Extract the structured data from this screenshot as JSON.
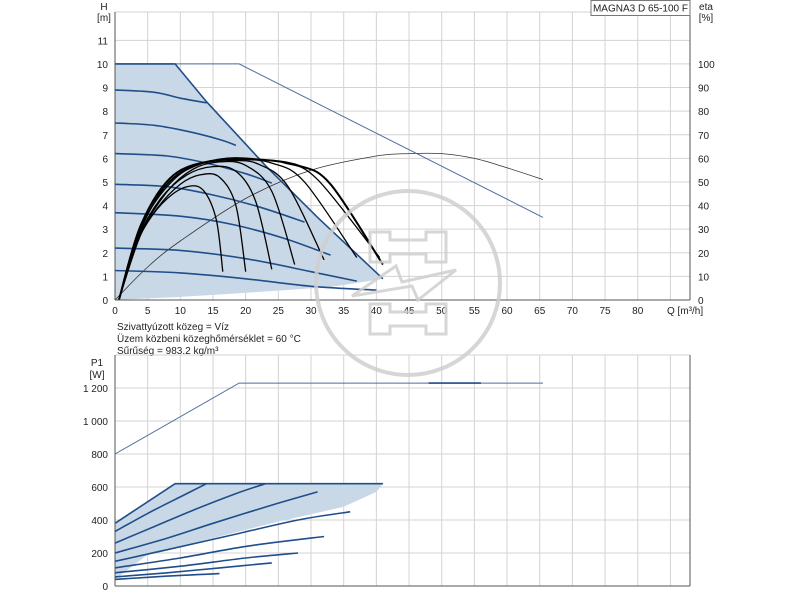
{
  "product_label": "MAGNA3 D 65-100 F",
  "medium_info": [
    "Szivattyúzott közeg = Víz",
    "Üzem közbeni közeghőmérséklet = 60 °C",
    "Sűrűség = 983.2 kg/m³"
  ],
  "colors": {
    "curve": "#1f4e8a",
    "curve_bold": "#000000",
    "line_thin": "#4f6f9f",
    "fill": "#c9d8e6",
    "grid": "#d3d3d3",
    "axis": "#555555",
    "watermark": "#cfcfcf"
  },
  "chart_data": [
    {
      "type": "line",
      "panel": "head",
      "ylabel_top": "H",
      "yunit": "[m]",
      "y2label_top": "eta",
      "y2unit": "[%]",
      "xlabel": "Q [m³/h]",
      "xlim": [
        0,
        88
      ],
      "ylim": [
        0,
        12.2
      ],
      "y2lim": [
        0,
        122
      ],
      "xticks": [
        0,
        5,
        10,
        15,
        20,
        25,
        30,
        35,
        40,
        45,
        50,
        55,
        60,
        65,
        70,
        75,
        80
      ],
      "yticks": [
        0,
        1,
        2,
        3,
        4,
        5,
        6,
        7,
        8,
        9,
        10,
        11
      ],
      "y2ticks": [
        0,
        10,
        20,
        30,
        40,
        50,
        60,
        70,
        80,
        90,
        100
      ],
      "grid": true,
      "operating_area": [
        [
          0,
          10
        ],
        [
          9.2,
          10
        ],
        [
          14,
          8.4
        ],
        [
          23,
          5.7
        ],
        [
          31,
          3.5
        ],
        [
          41,
          0.9
        ],
        [
          33,
          0.55
        ],
        [
          25,
          0.4
        ],
        [
          17,
          0.25
        ],
        [
          9,
          0.12
        ],
        [
          0,
          0
        ]
      ],
      "head_curves": [
        [
          [
            0,
            10
          ],
          [
            9.2,
            10
          ],
          [
            14,
            8.4
          ],
          [
            23,
            5.7
          ],
          [
            31,
            3.5
          ],
          [
            41,
            0.9
          ]
        ],
        [
          [
            0,
            8.9
          ],
          [
            6,
            8.8
          ],
          [
            10,
            8.55
          ],
          [
            14,
            8.35
          ]
        ],
        [
          [
            0,
            7.5
          ],
          [
            6,
            7.4
          ],
          [
            11,
            7.15
          ],
          [
            16,
            6.8
          ],
          [
            18.5,
            6.55
          ]
        ],
        [
          [
            0,
            6.2
          ],
          [
            8,
            6.1
          ],
          [
            14,
            5.8
          ],
          [
            20,
            5.35
          ],
          [
            24,
            4.95
          ]
        ],
        [
          [
            0,
            4.9
          ],
          [
            8,
            4.8
          ],
          [
            15,
            4.45
          ],
          [
            22,
            3.95
          ],
          [
            29,
            3.3
          ]
        ],
        [
          [
            0,
            3.7
          ],
          [
            10,
            3.55
          ],
          [
            18,
            3.2
          ],
          [
            26,
            2.6
          ],
          [
            33,
            1.9
          ]
        ],
        [
          [
            0,
            2.2
          ],
          [
            10,
            2.1
          ],
          [
            20,
            1.75
          ],
          [
            30,
            1.2
          ],
          [
            37,
            0.8
          ]
        ],
        [
          [
            0,
            1.25
          ],
          [
            10,
            1.15
          ],
          [
            20,
            0.9
          ],
          [
            30,
            0.58
          ],
          [
            40,
            0.42
          ]
        ]
      ],
      "efficiency_curves_bold": [
        [
          [
            0.6,
            0
          ],
          [
            2.5,
            1.9
          ],
          [
            5,
            3.3
          ],
          [
            8,
            4.3
          ],
          [
            11,
            4.8
          ],
          [
            13.5,
            4.65
          ],
          [
            15.5,
            3.4
          ],
          [
            16.5,
            1.2
          ]
        ],
        [
          [
            0.6,
            0
          ],
          [
            3,
            2.3
          ],
          [
            6.5,
            3.9
          ],
          [
            10,
            4.9
          ],
          [
            13,
            5.3
          ],
          [
            16,
            5.2
          ],
          [
            18.5,
            4
          ],
          [
            20,
            1.2
          ]
        ],
        [
          [
            0.6,
            0
          ],
          [
            3.5,
            2.6
          ],
          [
            7,
            4.3
          ],
          [
            11,
            5.3
          ],
          [
            15,
            5.65
          ],
          [
            18.5,
            5.45
          ],
          [
            21.5,
            4.2
          ],
          [
            24,
            1.3
          ]
        ],
        [
          [
            0.6,
            0
          ],
          [
            4,
            2.8
          ],
          [
            8,
            4.6
          ],
          [
            12,
            5.55
          ],
          [
            16,
            5.85
          ],
          [
            20,
            5.7
          ],
          [
            24,
            4.6
          ],
          [
            27.5,
            1.5
          ]
        ],
        [
          [
            0.6,
            0
          ],
          [
            4,
            3
          ],
          [
            8,
            4.9
          ],
          [
            13,
            5.75
          ],
          [
            18,
            5.9
          ],
          [
            22,
            5.75
          ],
          [
            26.5,
            4.8
          ],
          [
            32,
            1.7
          ]
        ],
        [
          [
            0.6,
            0
          ],
          [
            4,
            3.1
          ],
          [
            9,
            5.1
          ],
          [
            14,
            5.85
          ],
          [
            19,
            5.95
          ],
          [
            24,
            5.8
          ],
          [
            29,
            5
          ],
          [
            37,
            1.8
          ]
        ],
        [
          [
            0.6,
            0
          ],
          [
            4,
            3.2
          ],
          [
            9,
            5.2
          ],
          [
            15,
            5.9
          ],
          [
            20,
            5.95
          ],
          [
            26,
            5.8
          ],
          [
            31,
            5.1
          ],
          [
            40.5,
            1.8
          ]
        ],
        [
          [
            0.6,
            0
          ],
          [
            4,
            3.2
          ],
          [
            9,
            5.3
          ],
          [
            16,
            5.95
          ],
          [
            22,
            5.95
          ],
          [
            28,
            5.7
          ],
          [
            33,
            4.9
          ],
          [
            41,
            1.5
          ]
        ]
      ],
      "efficiency_thin": [
        [
          0,
          0
        ],
        [
          5,
          14
        ],
        [
          10,
          25
        ],
        [
          20,
          43
        ],
        [
          30,
          55
        ],
        [
          40,
          61
        ],
        [
          45,
          62
        ],
        [
          50,
          62
        ],
        [
          55,
          60
        ],
        [
          60,
          56
        ],
        [
          65.5,
          51
        ]
      ],
      "power_limit_line": [
        [
          0,
          100
        ],
        [
          19,
          100
        ],
        [
          65.5,
          35
        ]
      ]
    },
    {
      "type": "line",
      "panel": "power",
      "ylabel_top": "P1",
      "yunit": "[W]",
      "xlim": [
        0,
        88
      ],
      "ylim": [
        0,
        1400
      ],
      "yticks": [
        0,
        200,
        400,
        600,
        800,
        1000,
        1200
      ],
      "ytick_labels": [
        "0",
        "200",
        "400",
        "600",
        "800",
        "1 000",
        "1 200"
      ],
      "grid": true,
      "operating_area": [
        [
          0,
          380
        ],
        [
          9.2,
          620
        ],
        [
          41,
          620
        ],
        [
          40,
          570
        ],
        [
          35,
          480
        ],
        [
          25,
          390
        ],
        [
          15,
          290
        ],
        [
          5,
          190
        ],
        [
          0,
          40
        ]
      ],
      "power_curves": [
        [
          [
            0,
            380
          ],
          [
            9.2,
            620
          ],
          [
            41,
            620
          ]
        ],
        [
          [
            0,
            330
          ],
          [
            5,
            440
          ],
          [
            10,
            540
          ],
          [
            14,
            620
          ]
        ],
        [
          [
            0,
            260
          ],
          [
            6,
            360
          ],
          [
            12,
            460
          ],
          [
            18.5,
            560
          ],
          [
            23,
            620
          ]
        ],
        [
          [
            0,
            200
          ],
          [
            8,
            290
          ],
          [
            15,
            380
          ],
          [
            24,
            490
          ],
          [
            31,
            570
          ]
        ],
        [
          [
            0,
            150
          ],
          [
            8,
            220
          ],
          [
            18,
            310
          ],
          [
            28,
            400
          ],
          [
            36,
            450
          ]
        ],
        [
          [
            0,
            110
          ],
          [
            10,
            170
          ],
          [
            20,
            240
          ],
          [
            32,
            300
          ]
        ],
        [
          [
            0,
            80
          ],
          [
            10,
            120
          ],
          [
            20,
            170
          ],
          [
            28,
            200
          ]
        ],
        [
          [
            0,
            55
          ],
          [
            8,
            80
          ],
          [
            16,
            110
          ],
          [
            24,
            140
          ]
        ],
        [
          [
            0,
            40
          ],
          [
            8,
            60
          ],
          [
            16,
            75
          ]
        ]
      ],
      "max_power_line": [
        [
          0,
          800
        ],
        [
          19,
          1230
        ],
        [
          65.5,
          1230
        ]
      ],
      "max_power_overlap": [
        [
          48,
          1230
        ],
        [
          56,
          1230
        ]
      ]
    }
  ]
}
